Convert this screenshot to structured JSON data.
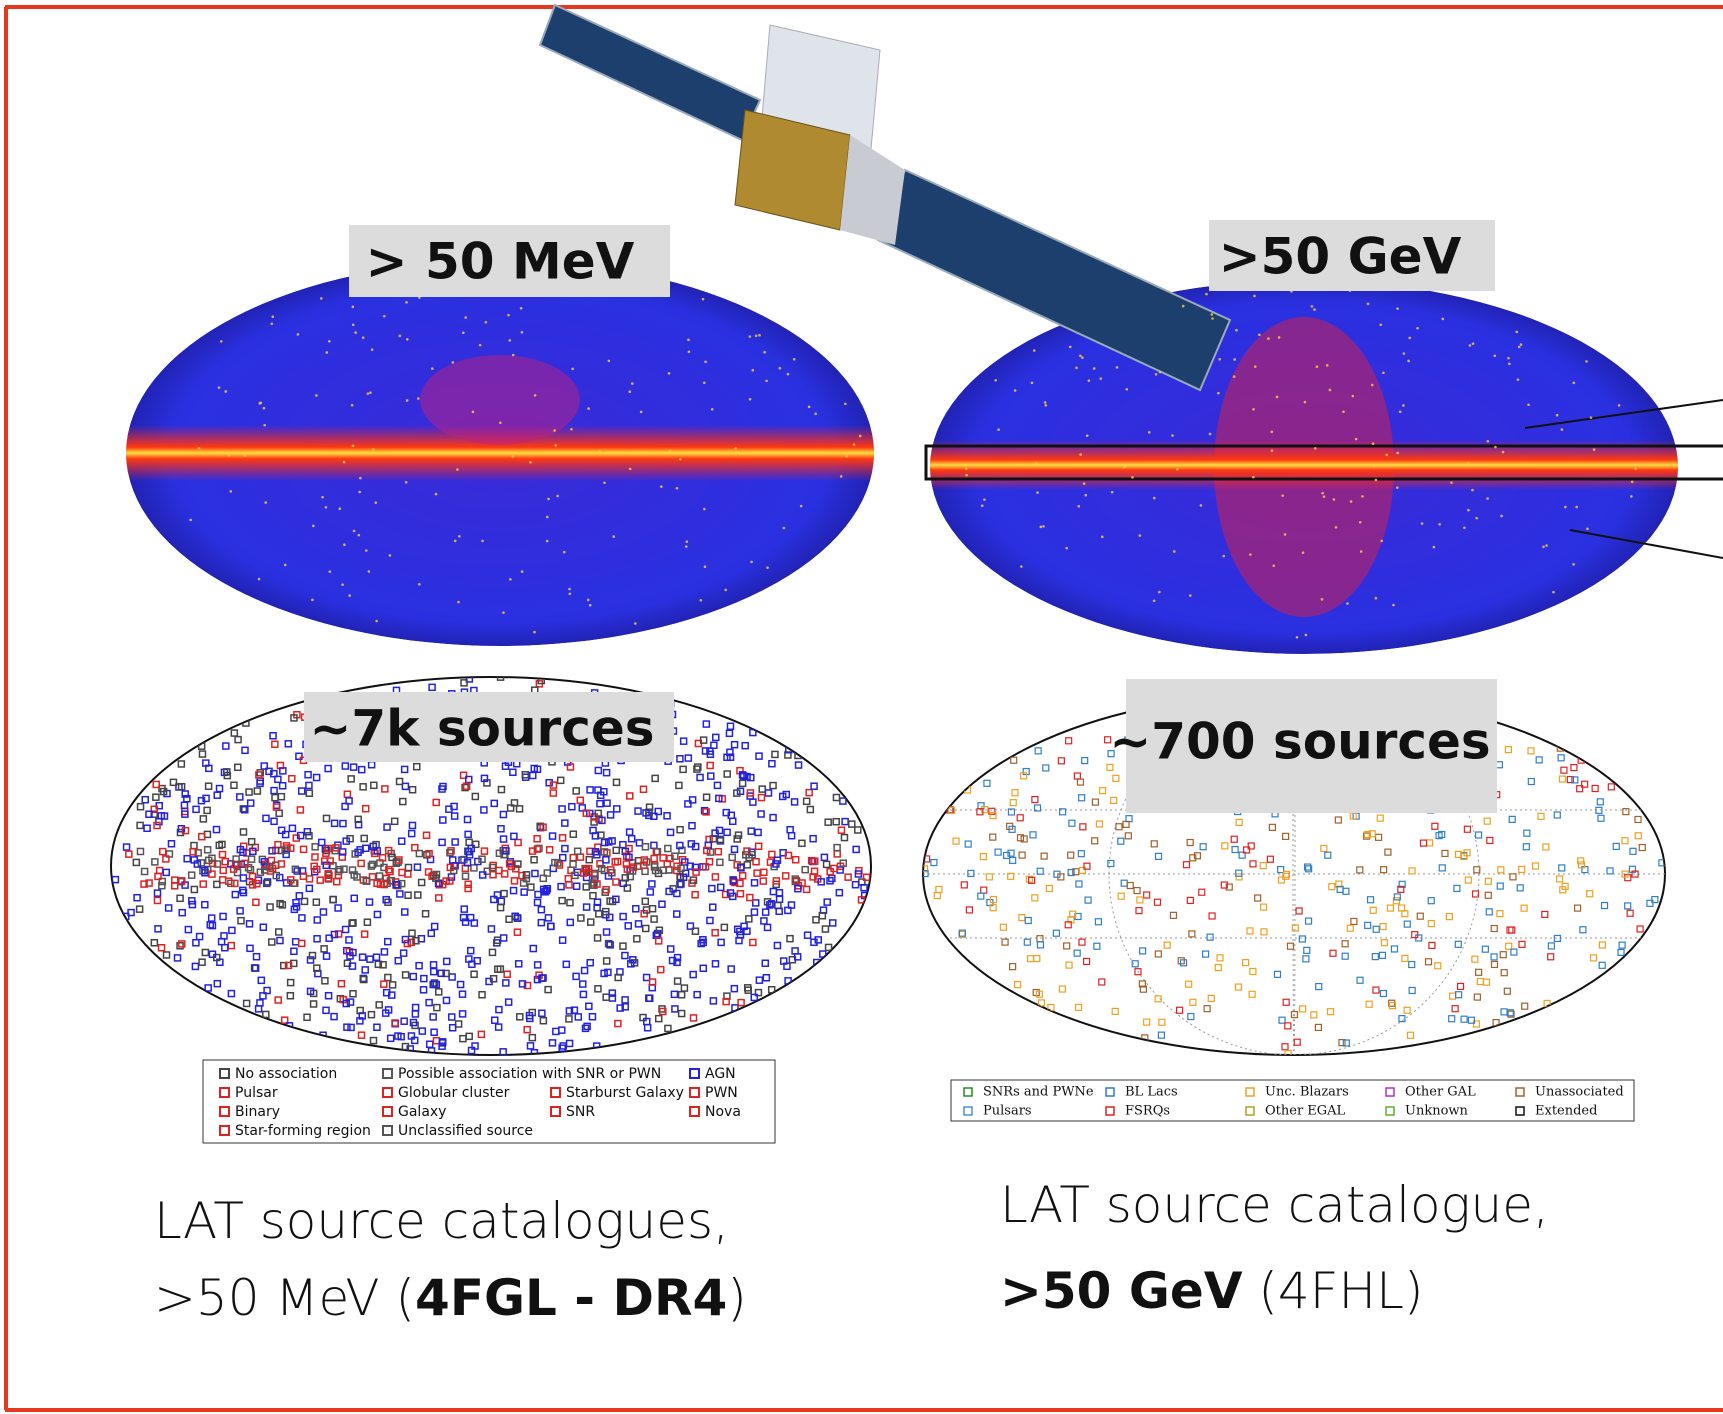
{
  "maps": [
    {
      "label": "> 50 MeV"
    },
    {
      "label": ">50 GeV"
    }
  ],
  "catalogues": [
    {
      "label": "~7k sources",
      "legend": [
        {
          "name": "No association",
          "color": "#444444"
        },
        {
          "name": "Possible association with SNR or PWN",
          "color": "#555555"
        },
        {
          "name": "AGN",
          "color": "#2222dd"
        },
        {
          "name": "Pulsar",
          "color": "#dd2222"
        },
        {
          "name": "Globular cluster",
          "color": "#dd2222"
        },
        {
          "name": "Starburst Galaxy",
          "color": "#dd2222"
        },
        {
          "name": "PWN",
          "color": "#dd2222"
        },
        {
          "name": "Binary",
          "color": "#dd2222"
        },
        {
          "name": "Galaxy",
          "color": "#dd2222"
        },
        {
          "name": "SNR",
          "color": "#dd2222"
        },
        {
          "name": "Nova",
          "color": "#dd2222"
        },
        {
          "name": "Star-forming region",
          "color": "#dd2222"
        },
        {
          "name": "Unclassified source",
          "color": "#555555"
        }
      ]
    },
    {
      "label": "~700 sources",
      "legend": [
        {
          "name": "SNRs and PWNe",
          "color": "#2a8a2a"
        },
        {
          "name": "Pulsars",
          "color": "#4a90d9"
        },
        {
          "name": "BL Lacs",
          "color": "#2f7fc8"
        },
        {
          "name": "FSRQs",
          "color": "#dd2222"
        },
        {
          "name": "Unc. Blazars",
          "color": "#f0a020"
        },
        {
          "name": "Other EGAL",
          "color": "#b8a020"
        },
        {
          "name": "Other GAL",
          "color": "#b030d0"
        },
        {
          "name": "Unknown",
          "color": "#60b030"
        },
        {
          "name": "Unassociated",
          "color": "#a0602a"
        },
        {
          "name": "Extended",
          "color": "#111111"
        }
      ]
    }
  ],
  "captions": [
    {
      "lines": [
        [
          {
            "text": "LAT source catalogues,",
            "bold": false
          }
        ],
        [
          {
            "text": ">50 MeV (",
            "bold": false
          },
          {
            "text": "4FGL - DR4",
            "bold": true
          },
          {
            "text": ")",
            "bold": false
          }
        ]
      ]
    },
    {
      "lines": [
        [
          {
            "text": "LAT source catalogue,",
            "bold": false
          }
        ],
        [
          {
            "text": ">50 GeV",
            "bold": true
          },
          {
            "text": " (4FHL)",
            "bold": false
          }
        ]
      ]
    }
  ]
}
